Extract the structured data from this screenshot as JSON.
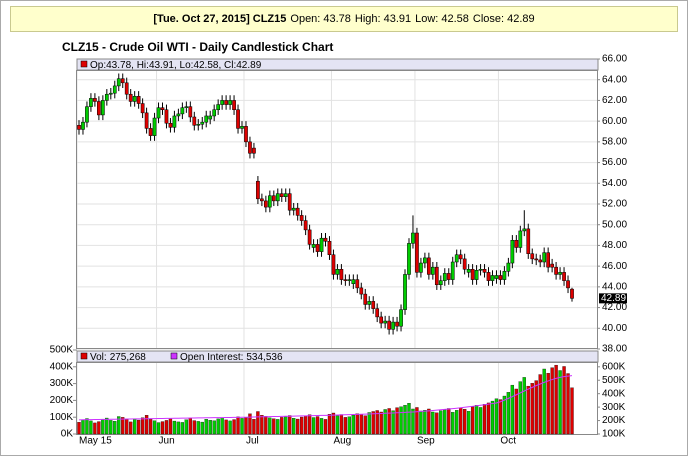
{
  "header": {
    "date": "[Tue. Oct 27, 2015]",
    "symbol": "CLZ15",
    "labels": [
      "Open:",
      "High:",
      "Low:",
      "Close:"
    ]
  },
  "chart_data": [
    {
      "type": "candlestick",
      "title": "CLZ15 - Crude Oil WTI - Daily Candlestick Chart",
      "legend_labels": [
        "Op:",
        ", Hi:",
        ", Lo:",
        ", Cl:"
      ],
      "up_color": "#00cc00",
      "down_color": "#dd0000",
      "grid": true,
      "ylim": [
        38,
        66
      ],
      "yticks": [
        {
          "value": 38,
          "label": "38.00"
        },
        {
          "value": 40,
          "label": "40.00"
        },
        {
          "value": 42,
          "label": "42.00"
        },
        {
          "value": 44,
          "label": "44.00"
        },
        {
          "value": 46,
          "label": "46.00"
        },
        {
          "value": 48,
          "label": "48.00"
        },
        {
          "value": 50,
          "label": "50.00"
        },
        {
          "value": 52,
          "label": "52.00"
        },
        {
          "value": 54,
          "label": "54.00"
        },
        {
          "value": 56,
          "label": "56.00"
        },
        {
          "value": 58,
          "label": "58.00"
        },
        {
          "value": 60,
          "label": "60.00"
        },
        {
          "value": 62,
          "label": "62.00"
        },
        {
          "value": 64,
          "label": "64.00"
        },
        {
          "value": 66,
          "label": "66.00"
        }
      ],
      "open": [
        59.6,
        59.2,
        59.9,
        61.4,
        62.2,
        61.9,
        60.6,
        62.0,
        62.6,
        62.7,
        63.4,
        64.1,
        63.7,
        62.6,
        61.9,
        62.4,
        61.7,
        60.8,
        59.3,
        58.6,
        60.3,
        61.3,
        61.1,
        59.8,
        59.4,
        60.5,
        60.7,
        61.3,
        61.4,
        60.4,
        59.6,
        59.7,
        59.9,
        60.2,
        60.5,
        61.1,
        61.6,
        62.0,
        61.6,
        62.0,
        61.1,
        59.3,
        59.5,
        58.0,
        57.4,
        54.2,
        52.5,
        52.3,
        51.7,
        52.8,
        52.3,
        53.0,
        52.7,
        53.0,
        51.4,
        51.6,
        50.9,
        50.4,
        49.5,
        47.8,
        48.1,
        47.4,
        48.7,
        48.4,
        47.1,
        45.2,
        45.7,
        44.7,
        44.6,
        44.3,
        44.7,
        43.9,
        43.3,
        42.3,
        42.6,
        41.9,
        41.1,
        40.5,
        40.7,
        39.9,
        40.6,
        40.2,
        41.8,
        45.2,
        48.2,
        49.2,
        45.4,
        46.3,
        46.8,
        45.2,
        45.9,
        44.2,
        44.6,
        45.3,
        44.7,
        46.4,
        47.1,
        46.7,
        45.4,
        45.7,
        44.7,
        45.6,
        45.7,
        45.4,
        44.6,
        44.8,
        45.1,
        44.7,
        45.5,
        46.3,
        48.5,
        47.8,
        49.4,
        49.6,
        47.2,
        46.7,
        46.6,
        46.4,
        47.3,
        46.2,
        45.9,
        45.2,
        45.4,
        44.6,
        43.78
      ],
      "high": [
        60.1,
        60.4,
        61.9,
        62.7,
        62.7,
        62.4,
        62.5,
        63.1,
        63.2,
        63.9,
        64.6,
        64.6,
        64.2,
        63.1,
        62.9,
        62.9,
        62.2,
        61.3,
        59.8,
        60.8,
        61.8,
        61.8,
        61.6,
        60.3,
        61.0,
        61.2,
        61.8,
        61.9,
        61.9,
        60.9,
        60.2,
        60.4,
        61.0,
        61.0,
        61.6,
        62.1,
        62.5,
        62.5,
        62.5,
        62.5,
        61.6,
        60.0,
        60.0,
        58.5,
        57.9,
        54.7,
        53.0,
        52.8,
        53.3,
        53.3,
        53.5,
        53.5,
        53.5,
        53.5,
        52.1,
        52.1,
        51.4,
        50.9,
        50.0,
        48.6,
        48.6,
        49.2,
        49.2,
        48.9,
        47.6,
        46.2,
        46.2,
        45.2,
        45.2,
        45.2,
        45.2,
        44.4,
        43.8,
        43.1,
        43.1,
        42.4,
        41.6,
        41.2,
        41.2,
        41.1,
        41.1,
        42.3,
        45.7,
        48.7,
        50.9,
        49.7,
        46.8,
        47.3,
        47.3,
        46.4,
        46.4,
        45.1,
        45.8,
        45.8,
        46.9,
        47.6,
        47.6,
        47.2,
        46.2,
        46.2,
        46.1,
        46.2,
        46.2,
        45.9,
        45.6,
        45.6,
        45.6,
        46.0,
        46.8,
        49.0,
        49.0,
        49.9,
        51.4,
        50.1,
        47.7,
        47.2,
        47.1,
        47.8,
        47.8,
        46.7,
        46.4,
        45.9,
        45.9,
        45.1,
        43.91
      ],
      "low": [
        58.7,
        58.7,
        59.4,
        60.9,
        61.4,
        60.1,
        60.1,
        61.5,
        62.1,
        62.2,
        62.9,
        63.2,
        62.1,
        61.4,
        61.4,
        61.2,
        60.3,
        58.8,
        58.1,
        58.1,
        59.8,
        60.6,
        59.3,
        58.9,
        58.9,
        60.0,
        60.2,
        60.8,
        59.9,
        59.1,
        59.1,
        59.2,
        59.4,
        59.7,
        60.0,
        60.6,
        61.1,
        61.1,
        61.1,
        60.6,
        58.8,
        58.8,
        57.5,
        56.4,
        56.4,
        52.0,
        51.8,
        51.2,
        51.2,
        51.8,
        51.8,
        52.2,
        52.2,
        50.9,
        50.9,
        50.4,
        49.9,
        49.0,
        47.6,
        47.3,
        46.9,
        46.9,
        47.9,
        46.6,
        44.7,
        44.7,
        44.2,
        44.1,
        44.1,
        43.8,
        43.4,
        42.8,
        41.8,
        41.8,
        41.4,
        40.6,
        40.0,
        40.0,
        39.4,
        39.4,
        39.7,
        39.7,
        41.3,
        44.7,
        47.7,
        44.9,
        44.9,
        45.8,
        44.7,
        44.7,
        43.7,
        43.7,
        44.1,
        44.2,
        44.2,
        45.9,
        46.2,
        45.2,
        44.9,
        44.2,
        44.2,
        45.1,
        44.9,
        44.1,
        44.1,
        44.3,
        44.2,
        44.2,
        45.0,
        45.8,
        47.3,
        47.3,
        48.9,
        46.7,
        46.2,
        46.1,
        45.9,
        45.9,
        45.4,
        45.4,
        44.7,
        44.7,
        44.1,
        43.4,
        42.58
      ],
      "close": [
        59.2,
        59.9,
        61.4,
        62.2,
        61.9,
        60.6,
        62.0,
        62.6,
        62.7,
        63.4,
        64.1,
        63.7,
        62.6,
        61.9,
        62.4,
        61.7,
        60.8,
        59.3,
        58.6,
        60.3,
        61.3,
        61.1,
        59.8,
        59.4,
        60.5,
        60.7,
        61.3,
        61.4,
        60.4,
        59.6,
        59.7,
        59.9,
        60.5,
        60.5,
        61.1,
        61.6,
        62.0,
        61.6,
        62.0,
        61.1,
        59.3,
        59.5,
        58.0,
        56.9,
        56.9,
        52.5,
        52.3,
        51.7,
        52.8,
        52.3,
        53.0,
        52.7,
        53.0,
        51.4,
        51.6,
        50.9,
        50.4,
        49.5,
        48.1,
        48.1,
        47.4,
        48.7,
        48.4,
        47.1,
        45.2,
        45.7,
        44.7,
        44.6,
        44.7,
        44.7,
        43.9,
        43.3,
        42.3,
        42.6,
        41.9,
        41.1,
        40.5,
        40.7,
        39.9,
        40.6,
        40.2,
        41.8,
        45.2,
        48.2,
        49.2,
        45.4,
        46.3,
        46.8,
        45.2,
        45.9,
        44.2,
        44.6,
        45.3,
        44.7,
        46.4,
        47.1,
        46.7,
        45.7,
        45.7,
        44.7,
        45.6,
        45.7,
        45.4,
        44.6,
        45.1,
        45.1,
        44.7,
        45.5,
        46.3,
        48.5,
        47.8,
        49.4,
        49.6,
        47.2,
        46.7,
        46.6,
        46.4,
        47.3,
        45.9,
        45.9,
        45.2,
        45.4,
        44.6,
        43.9,
        42.89
      ]
    },
    {
      "type": "bar",
      "xticks": [
        {
          "value": 0,
          "label": "May 15"
        },
        {
          "value": 20,
          "label": "Jun"
        },
        {
          "value": 42,
          "label": "Jul"
        },
        {
          "value": 64,
          "label": "Aug"
        },
        {
          "value": 85,
          "label": "Sep"
        },
        {
          "value": 106,
          "label": "Oct"
        }
      ],
      "ylim": [
        0,
        500000
      ],
      "yticks": [
        {
          "value": 0,
          "label": "0K"
        },
        {
          "value": 100000,
          "label": "100K"
        },
        {
          "value": 200000,
          "label": "200K"
        },
        {
          "value": 300000,
          "label": "300K"
        },
        {
          "value": 400000,
          "label": "400K"
        },
        {
          "value": 500000,
          "label": "500K"
        }
      ],
      "y2lim": [
        100000,
        725000
      ],
      "y2ticks": [
        {
          "value": 100000,
          "label": "100K"
        },
        {
          "value": 200000,
          "label": "200K"
        },
        {
          "value": 300000,
          "label": "300K"
        },
        {
          "value": 400000,
          "label": "400K"
        },
        {
          "value": 500000,
          "label": "500K"
        },
        {
          "value": 600000,
          "label": "600K"
        }
      ],
      "series": [
        {
          "name": "Vol:",
          "color": "#dd0000",
          "value_label": "275,268",
          "values": [
            70000,
            85000,
            92000,
            78000,
            66000,
            74000,
            88000,
            95000,
            81000,
            76000,
            104000,
            99000,
            87000,
            72000,
            91000,
            83000,
            97000,
            112000,
            88000,
            79000,
            68000,
            74000,
            81000,
            90000,
            77000,
            72000,
            69000,
            85000,
            94000,
            80000,
            75000,
            71000,
            88000,
            82000,
            79000,
            90000,
            96000,
            84000,
            78000,
            86000,
            102000,
            93000,
            98000,
            120000,
            88000,
            134000,
            112000,
            105000,
            96000,
            91000,
            87000,
            99000,
            102000,
            110000,
            94000,
            89000,
            101000,
            107000,
            115000,
            98000,
            104000,
            93000,
            87000,
            118000,
            125000,
            108000,
            116000,
            99000,
            103000,
            112000,
            121000,
            117000,
            109000,
            128000,
            134000,
            140000,
            131000,
            146000,
            152000,
            139000,
            157000,
            162000,
            171000,
            183000,
            149000,
            158000,
            137000,
            142000,
            149000,
            131000,
            126000,
            138000,
            145000,
            152000,
            129000,
            141000,
            156000,
            148000,
            135000,
            162000,
            171000,
            158000,
            177000,
            185000,
            196000,
            210000,
            205000,
            226000,
            248000,
            291000,
            268000,
            312000,
            337000,
            285000,
            302000,
            318000,
            354000,
            387000,
            362000,
            395000,
            410000,
            378000,
            402000,
            360000,
            275268
          ]
        },
        {
          "name": "Open Interest:",
          "color": "#cc33ff",
          "axis": "y2",
          "value_label": "534,536",
          "values": [
            205000,
            206000,
            206500,
            207000,
            207800,
            208200,
            208500,
            209000,
            209600,
            210000,
            210400,
            211000,
            211500,
            212000,
            212300,
            212700,
            213000,
            213600,
            214000,
            214500,
            215000,
            215400,
            216000,
            216500,
            217000,
            217400,
            218000,
            218300,
            218800,
            219200,
            219600,
            220000,
            220500,
            221000,
            221400,
            221800,
            222300,
            222700,
            223000,
            223600,
            224000,
            224500,
            225000,
            225800,
            226500,
            227300,
            228000,
            228600,
            229200,
            229800,
            230400,
            231000,
            231800,
            232500,
            233100,
            233800,
            234500,
            235200,
            236000,
            236800,
            237500,
            238300,
            239000,
            239800,
            240600,
            241500,
            242300,
            243200,
            244000,
            245000,
            246000,
            247000,
            248100,
            249200,
            250400,
            251600,
            252800,
            254000,
            255300,
            256600,
            258000,
            259500,
            261000,
            262500,
            264000,
            266000,
            268000,
            270000,
            272500,
            275000,
            277500,
            280000,
            283000,
            286000,
            289000,
            292000,
            295500,
            299000,
            302500,
            306000,
            310000,
            314000,
            318000,
            322000,
            326500,
            331000,
            340000,
            352000,
            365000,
            378000,
            392000,
            406000,
            420000,
            434000,
            447000,
            460000,
            472000,
            484000,
            495000,
            505000,
            514000,
            521000,
            527000,
            531000,
            534536
          ]
        }
      ]
    }
  ]
}
